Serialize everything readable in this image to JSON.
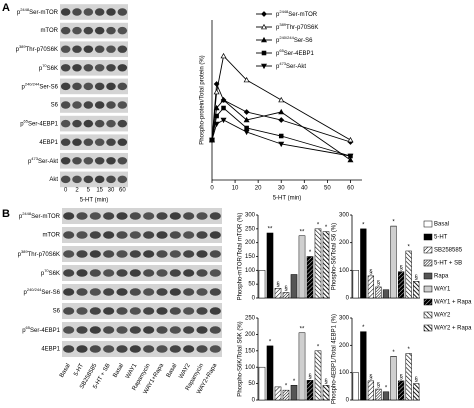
{
  "panel_a": {
    "label": "A",
    "blot": {
      "rows": [
        "p2448Ser-mTOR",
        "mTOR",
        "p389Thr-p70S6K",
        "p70S6K",
        "p240/244Ser-S6",
        "S6",
        "p65Ser-4EBP1",
        "4EBP1",
        "p473Ser-Akt",
        "Akt"
      ],
      "lanes": [
        "0",
        "2",
        "5",
        "15",
        "30",
        "60"
      ],
      "xlabel": "5-HT (min)"
    }
  },
  "panel_b": {
    "label": "B",
    "blot": {
      "rows": [
        "p2448Ser-mTOR",
        "mTOR",
        "p389Thr-p70S6K",
        "p70S6K",
        "p240/244Ser-S6",
        "S6",
        "p65Ser-4EBP1",
        "4EBP1"
      ],
      "lanes": [
        "Basal",
        "5-HT",
        "SB258585",
        "5-HT + SB",
        "Basal",
        "WAY1",
        "Rapamycin",
        "WAY1+Rapa",
        "Basal",
        "WAY2",
        "Rapamycin",
        "WAY2+Rapa"
      ]
    },
    "legend": {
      "entries": [
        "Basal",
        "5-HT",
        "SB258585",
        "5-HT + SB",
        "Rapa",
        "WAY1",
        "WAY1 + Rapa",
        "WAY2",
        "WAY2 + Rapa"
      ],
      "fills": [
        "white",
        "black",
        "hatch",
        "hatch2",
        "#555555",
        "dots",
        "hatch3",
        "hatch4",
        "hatch5"
      ]
    }
  },
  "chart_data": [
    {
      "type": "line",
      "ylabel": "Phospho-protein/Total protein (%)",
      "xlabel": "5-HT (min)",
      "x": [
        0,
        2,
        5,
        15,
        30,
        60
      ],
      "xlim": [
        0,
        65
      ],
      "xticks": [
        0,
        10,
        20,
        30,
        40,
        50,
        60
      ],
      "ylim": [
        0,
        400
      ],
      "series": [
        {
          "name": "p2448Ser-mTOR",
          "color": "#000000",
          "marker": "diamond",
          "values": [
            100,
            240,
            200,
            170,
            150,
            95
          ]
        },
        {
          "name": "p389Thr-p70S6K",
          "color": "#000000",
          "marker": "triangle-open",
          "values": [
            100,
            220,
            310,
            250,
            200,
            100
          ]
        },
        {
          "name": "p240/244Ser-S6",
          "color": "#000000",
          "marker": "triangle",
          "values": [
            100,
            180,
            200,
            150,
            170,
            50
          ]
        },
        {
          "name": "p65Ser-4EBP1",
          "color": "#000000",
          "marker": "square",
          "values": [
            100,
            160,
            180,
            130,
            110,
            60
          ]
        },
        {
          "name": "p473Ser-Akt",
          "color": "#000000",
          "marker": "triangle-down",
          "values": [
            100,
            140,
            150,
            120,
            90,
            60
          ]
        }
      ]
    },
    {
      "type": "bar",
      "ylabel": "Phospho-mTOR/Total mTOR (%)",
      "ylim": [
        0,
        300
      ],
      "yticks": [
        0,
        50,
        100,
        150,
        200,
        250,
        300
      ],
      "values": [
        100,
        235,
        35,
        20,
        85,
        225,
        150,
        250,
        240
      ],
      "annotations": [
        null,
        "**",
        "§",
        "§",
        null,
        "**",
        "*",
        "*",
        "*"
      ]
    },
    {
      "type": "bar",
      "ylabel": "Phospho-S6/Total S6 (%)",
      "ylim": [
        0,
        300
      ],
      "yticks": [
        0,
        100,
        200,
        300
      ],
      "values": [
        100,
        250,
        80,
        40,
        30,
        260,
        95,
        170,
        60
      ],
      "annotations": [
        null,
        "*",
        "§",
        "§",
        null,
        "*",
        "§",
        "*",
        "§"
      ]
    },
    {
      "type": "bar",
      "ylabel": "Phospho-S6K/Total S6K (%)",
      "ylim": [
        0,
        250
      ],
      "yticks": [
        0,
        50,
        100,
        150,
        200,
        250
      ],
      "values": [
        100,
        165,
        40,
        30,
        45,
        205,
        60,
        150,
        45
      ],
      "annotations": [
        null,
        "*",
        null,
        "*",
        "*",
        "**",
        "§",
        "*",
        "§"
      ]
    },
    {
      "type": "bar",
      "ylabel": "Phospho-4EBP1/Total 4EBP1 (%)",
      "ylim": [
        0,
        300
      ],
      "yticks": [
        0,
        100,
        200,
        300
      ],
      "values": [
        100,
        250,
        70,
        40,
        30,
        160,
        70,
        170,
        60
      ],
      "annotations": [
        null,
        "*",
        "§",
        "§",
        "*",
        "*",
        "§",
        "*",
        "§"
      ]
    }
  ]
}
